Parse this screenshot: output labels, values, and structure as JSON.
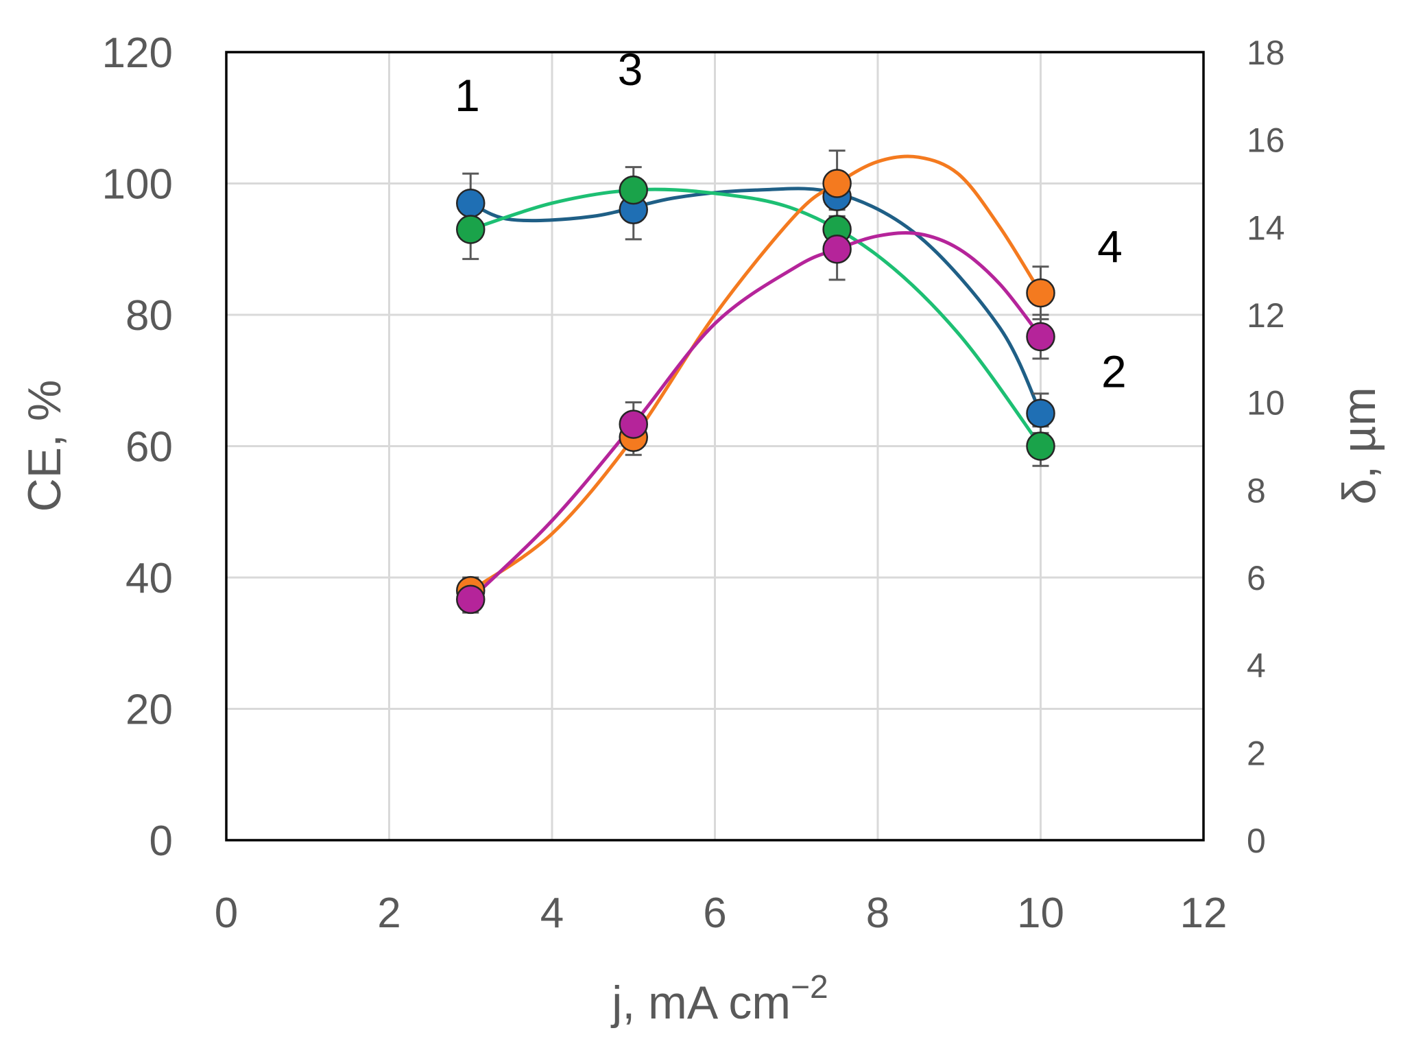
{
  "chart_data": {
    "type": "line",
    "xlabel": "j, mA cm",
    "xlabel_sup": "−2",
    "ylabel_left": "CE, %",
    "ylabel_right": "δ, µm",
    "xlim": [
      0,
      12
    ],
    "ylim_left": [
      0,
      120
    ],
    "ylim_right": [
      0,
      18
    ],
    "x_ticks": [
      "0",
      "2",
      "4",
      "6",
      "8",
      "10",
      "12"
    ],
    "y_left_ticks": [
      "0",
      "20",
      "40",
      "60",
      "80",
      "100",
      "120"
    ],
    "y_right_ticks": [
      "0",
      "2",
      "4",
      "6",
      "8",
      "10",
      "12",
      "14",
      "16",
      "18"
    ],
    "grid": true,
    "series": [
      {
        "label": "1",
        "axis": "left",
        "color": "#1f6fb4",
        "line_color": "#1f5f86",
        "x": [
          3,
          5,
          7.5,
          10
        ],
        "y": [
          97,
          96,
          98,
          65
        ],
        "err": [
          4.5,
          4.5,
          3,
          3
        ],
        "curve": [
          [
            3,
            97
          ],
          [
            3.5,
            94.5
          ],
          [
            4.5,
            95
          ],
          [
            5.5,
            97.8
          ],
          [
            6.5,
            99
          ],
          [
            7.5,
            98.5
          ],
          [
            8.5,
            92
          ],
          [
            9.5,
            78
          ],
          [
            10,
            65
          ]
        ]
      },
      {
        "label": "2",
        "axis": "left",
        "color": "#1aa34a",
        "line_color": "#1dbf73",
        "x": [
          3,
          5,
          7.5,
          10
        ],
        "y": [
          93,
          99,
          93,
          60
        ],
        "err": [
          4.5,
          3.5,
          3,
          3
        ],
        "curve": [
          [
            3,
            93
          ],
          [
            4,
            97
          ],
          [
            5,
            99
          ],
          [
            6,
            98.5
          ],
          [
            7,
            96
          ],
          [
            8,
            89
          ],
          [
            9,
            77
          ],
          [
            10,
            60
          ]
        ]
      },
      {
        "label": "3",
        "axis": "right",
        "color": "#f47a1f",
        "line_color": "#f47a1f",
        "x": [
          3,
          5,
          7.5,
          10
        ],
        "y": [
          5.7,
          9.2,
          15.0,
          12.5
        ],
        "err": [
          0.3,
          0.4,
          0.75,
          0.6
        ],
        "curve": [
          [
            3,
            5.7
          ],
          [
            4,
            7
          ],
          [
            5,
            9.2
          ],
          [
            6,
            12
          ],
          [
            7,
            14.3
          ],
          [
            7.5,
            15
          ],
          [
            8,
            15.5
          ],
          [
            8.5,
            15.6
          ],
          [
            9,
            15.2
          ],
          [
            9.5,
            14
          ],
          [
            10,
            12.5
          ]
        ]
      },
      {
        "label": "4",
        "axis": "right",
        "color": "#b5249a",
        "line_color": "#b5249a",
        "x": [
          3,
          5,
          7.5,
          10
        ],
        "y": [
          5.5,
          9.5,
          13.5,
          11.5
        ],
        "err": [
          0.3,
          0.5,
          0.7,
          0.5
        ],
        "curve": [
          [
            3,
            5.5
          ],
          [
            4,
            7.3
          ],
          [
            5,
            9.5
          ],
          [
            6,
            11.8
          ],
          [
            7,
            13.1
          ],
          [
            7.5,
            13.5
          ],
          [
            8,
            13.8
          ],
          [
            8.5,
            13.85
          ],
          [
            9,
            13.5
          ],
          [
            9.5,
            12.7
          ],
          [
            10,
            11.5
          ]
        ]
      }
    ],
    "annotations": [
      {
        "text": "1",
        "x": 2.96,
        "y": 111
      },
      {
        "text": "3",
        "x": 4.96,
        "y": 115
      },
      {
        "text": "4",
        "x": 10.85,
        "y": 88
      },
      {
        "text": "2",
        "x": 10.9,
        "y": 69
      }
    ]
  }
}
